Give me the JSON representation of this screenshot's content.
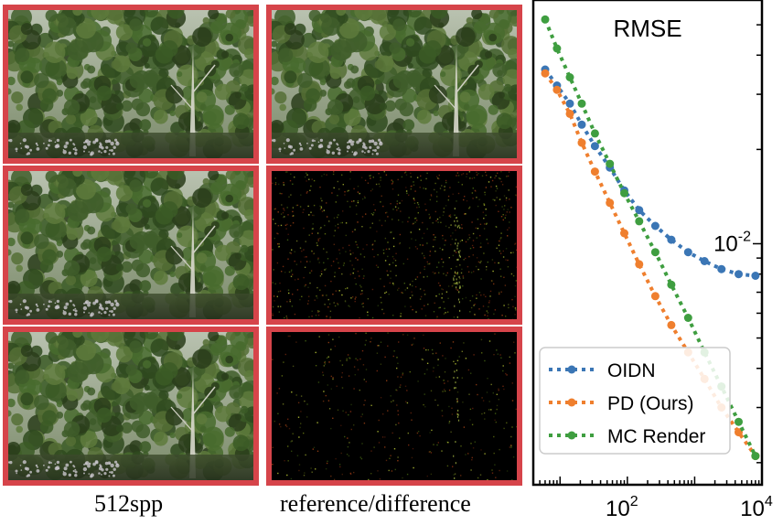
{
  "captions": {
    "left": "512spp",
    "middle": "reference/difference"
  },
  "panels": {
    "left_column": [
      "render",
      "render",
      "render"
    ],
    "middle_column": [
      "render",
      "difference-oidn",
      "difference-pd"
    ]
  },
  "colors": {
    "panel_border": "#d6444a",
    "oidn": "#3b76b5",
    "pd": "#ef7f2e",
    "mc": "#3f9e40"
  },
  "chart_data": {
    "type": "scatter",
    "title": "RMSE",
    "xscale": "log",
    "yscale": "log",
    "xlim": [
      4,
      10000
    ],
    "ylim": [
      0.0017,
      0.06
    ],
    "xticks": [
      100,
      10000
    ],
    "xtick_labels": [
      "10^2",
      "10^4"
    ],
    "yticks": [
      0.01
    ],
    "ytick_labels": [
      "10^-2"
    ],
    "legend": "bottom-right",
    "grid": false,
    "series": [
      {
        "name": "OIDN",
        "color": "#3b76b5",
        "x": [
          6,
          9,
          14,
          21,
          33,
          55,
          90,
          150,
          260,
          450,
          800,
          1400,
          2500,
          4500,
          8000
        ],
        "y": [
          0.036,
          0.032,
          0.028,
          0.024,
          0.0205,
          0.0175,
          0.0148,
          0.0128,
          0.0114,
          0.0103,
          0.0094,
          0.0088,
          0.0083,
          0.008,
          0.0079
        ]
      },
      {
        "name": "PD (Ours)",
        "color": "#ef7f2e",
        "x": [
          6,
          9,
          14,
          21,
          33,
          55,
          90,
          150,
          260,
          450,
          800,
          1400,
          2500,
          4500,
          8000
        ],
        "y": [
          0.035,
          0.031,
          0.026,
          0.021,
          0.017,
          0.0135,
          0.0108,
          0.0086,
          0.0068,
          0.0055,
          0.0045,
          0.0037,
          0.003,
          0.0025,
          0.0021
        ]
      },
      {
        "name": "MC Render",
        "color": "#3f9e40",
        "x": [
          6,
          9,
          14,
          21,
          33,
          55,
          90,
          150,
          260,
          450,
          800,
          1400,
          2500,
          4500,
          8000
        ],
        "y": [
          0.052,
          0.042,
          0.034,
          0.028,
          0.0225,
          0.018,
          0.0145,
          0.0118,
          0.0094,
          0.0074,
          0.0058,
          0.0045,
          0.0035,
          0.0027,
          0.0021
        ]
      }
    ]
  }
}
